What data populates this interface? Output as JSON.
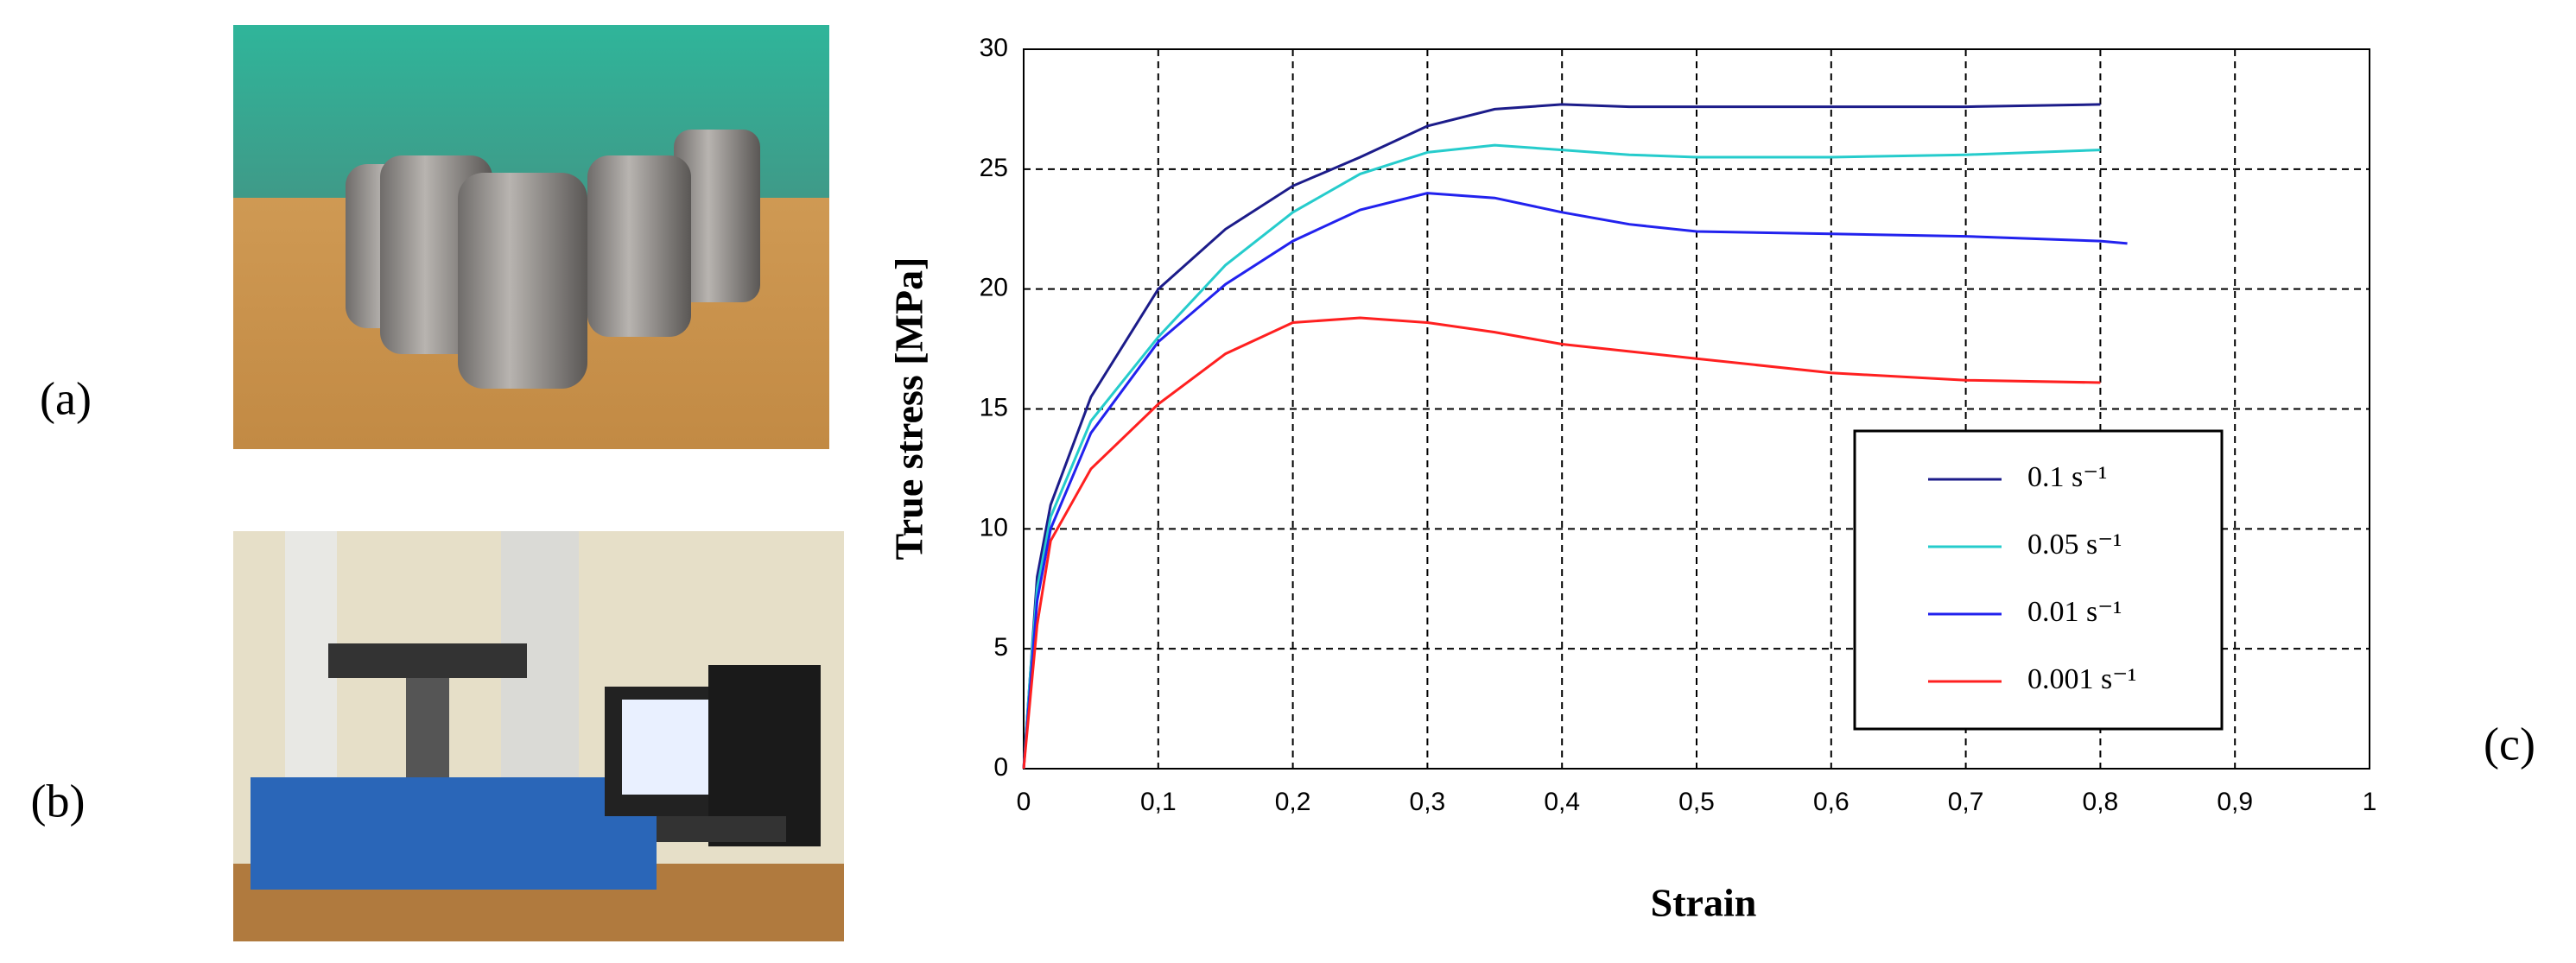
{
  "panel_labels": [
    "(a)",
    "(b)",
    "(c)"
  ],
  "chart_data": {
    "type": "line",
    "xlabel": "Strain",
    "ylabel": "True stress [MPa]",
    "x": [
      0,
      0.005,
      0.01,
      0.02,
      0.05,
      0.1,
      0.15,
      0.2,
      0.25,
      0.3,
      0.35,
      0.4,
      0.45,
      0.5,
      0.6,
      0.7,
      0.8,
      0.82
    ],
    "series": [
      {
        "name": "0.1 s⁻¹",
        "color": "#1c1c8a",
        "values": [
          0,
          4,
          8,
          11,
          15.5,
          20,
          22.5,
          24.3,
          25.5,
          26.8,
          27.5,
          27.7,
          27.6,
          27.6,
          27.6,
          27.6,
          27.7,
          null
        ]
      },
      {
        "name": "0.05 s⁻¹",
        "color": "#26cccc",
        "values": [
          0,
          4,
          7.5,
          10.5,
          14.5,
          18,
          21,
          23.2,
          24.8,
          25.7,
          26,
          25.8,
          25.6,
          25.5,
          25.5,
          25.6,
          25.8,
          null
        ]
      },
      {
        "name": "0.01 s⁻¹",
        "color": "#2222ee",
        "values": [
          0,
          3.5,
          7,
          10,
          14,
          17.8,
          20.2,
          22,
          23.3,
          24,
          23.8,
          23.2,
          22.7,
          22.4,
          22.3,
          22.2,
          22,
          21.9
        ]
      },
      {
        "name": "0.001 s⁻¹",
        "color": "#ff2020",
        "values": [
          0,
          3,
          6,
          9.5,
          12.5,
          15.2,
          17.3,
          18.6,
          18.8,
          18.6,
          18.2,
          17.7,
          17.4,
          17.1,
          16.5,
          16.2,
          16.1,
          null
        ]
      }
    ],
    "xlim": [
      0,
      1
    ],
    "ylim": [
      0,
      30
    ],
    "xticks": [
      0,
      {
        "value": 0.1,
        "label": "0,1"
      },
      {
        "value": 0.2,
        "label": "0,2"
      },
      {
        "value": 0.3,
        "label": "0,3"
      },
      {
        "value": 0.4,
        "label": "0,4"
      },
      {
        "value": 0.5,
        "label": "0,5"
      },
      {
        "value": 0.6,
        "label": "0,6"
      },
      {
        "value": 0.7,
        "label": "0,7"
      },
      {
        "value": 0.8,
        "label": "0,8"
      },
      {
        "value": 0.9,
        "label": "0,9"
      },
      1
    ],
    "yticks": [
      0,
      5,
      10,
      15,
      20,
      25,
      30
    ],
    "grid": true,
    "legend": "lower right"
  }
}
